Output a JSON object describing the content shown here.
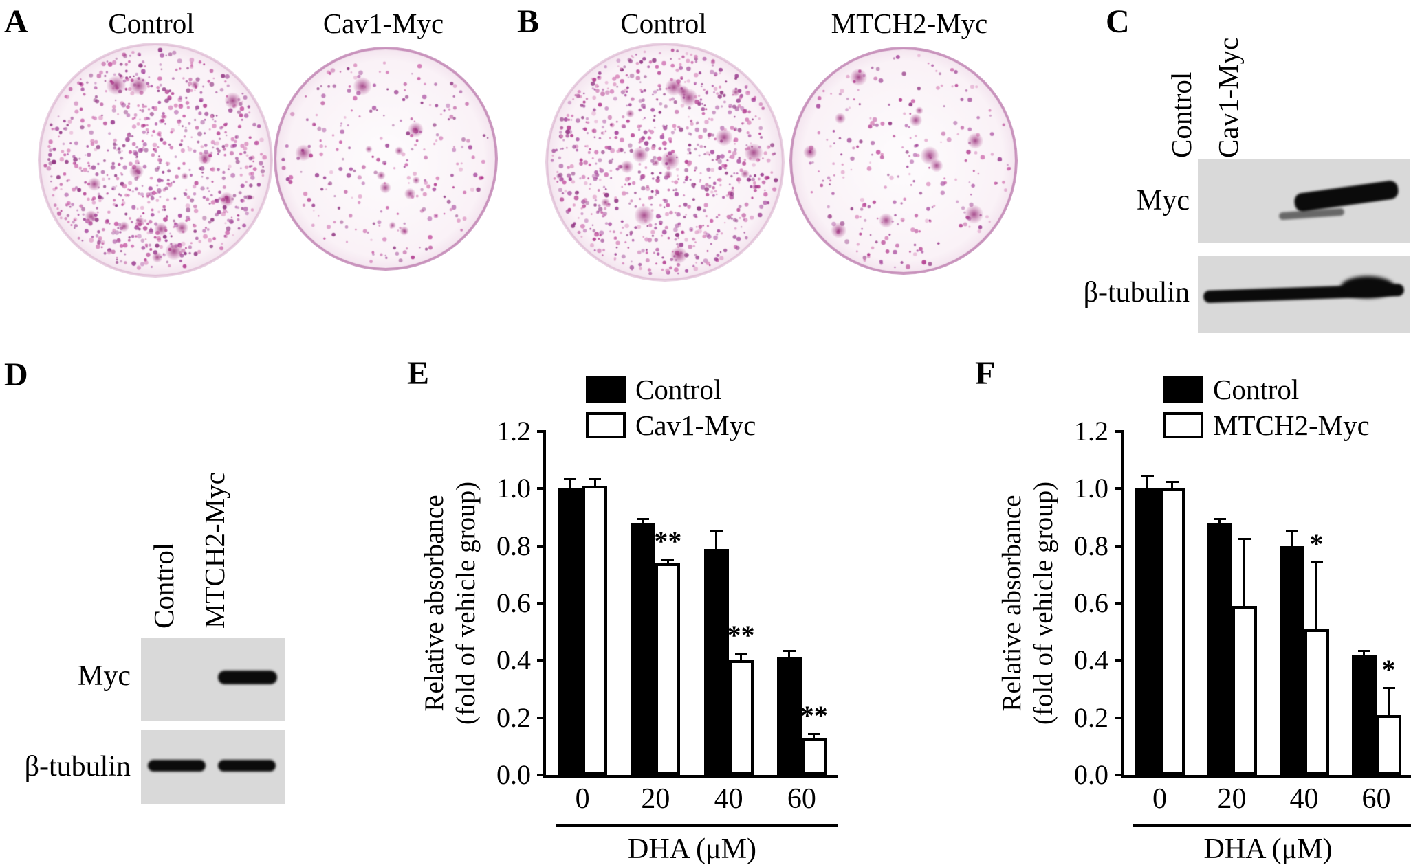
{
  "figure": {
    "panels": {
      "A": {
        "label": "A",
        "columns": [
          {
            "title": "Control",
            "density": "dense"
          },
          {
            "title": "Cav1-Myc",
            "density": "sparse"
          }
        ]
      },
      "B": {
        "label": "B",
        "columns": [
          {
            "title": "Control",
            "density": "dense"
          },
          {
            "title": "MTCH2-Myc",
            "density": "sparse"
          }
        ]
      },
      "C": {
        "label": "C",
        "lane_labels": [
          "Control",
          "Cav1-Myc"
        ],
        "row_labels": [
          "Myc",
          "β-tubulin"
        ]
      },
      "D": {
        "label": "D",
        "lane_labels": [
          "Control",
          "MTCH2-Myc"
        ],
        "row_labels": [
          "Myc",
          "β-tubulin"
        ]
      },
      "E": {
        "label": "E"
      },
      "F": {
        "label": "F"
      }
    }
  },
  "chart_data": [
    {
      "id": "E",
      "type": "bar",
      "categories": [
        "0",
        "20",
        "40",
        "60"
      ],
      "series": [
        {
          "name": "Control",
          "fill": "black",
          "values": [
            1.0,
            0.88,
            0.79,
            0.41
          ],
          "errors": [
            0.03,
            0.01,
            0.06,
            0.02
          ],
          "annotations": [
            "",
            "",
            "",
            ""
          ]
        },
        {
          "name": "Cav1-Myc",
          "fill": "white",
          "values": [
            1.01,
            0.74,
            0.4,
            0.13
          ],
          "errors": [
            0.02,
            0.01,
            0.02,
            0.01
          ],
          "annotations": [
            "",
            "**",
            "**",
            "**"
          ]
        }
      ],
      "xlabel": "DHA (μM)",
      "ylabel_lines": [
        "Relative absorbance",
        "(fold of vehicle group)"
      ],
      "ylim": [
        0,
        1.2
      ],
      "yticks": [
        "0.0",
        "0.2",
        "0.4",
        "0.6",
        "0.8",
        "1.0",
        "1.2"
      ],
      "legend_position": "top",
      "grid": false
    },
    {
      "id": "F",
      "type": "bar",
      "categories": [
        "0",
        "20",
        "40",
        "60"
      ],
      "series": [
        {
          "name": "Control",
          "fill": "black",
          "values": [
            1.0,
            0.88,
            0.8,
            0.42
          ],
          "errors": [
            0.04,
            0.01,
            0.05,
            0.01
          ],
          "annotations": [
            "",
            "",
            "",
            ""
          ]
        },
        {
          "name": "MTCH2-Myc",
          "fill": "white",
          "values": [
            1.0,
            0.59,
            0.51,
            0.21
          ],
          "errors": [
            0.02,
            0.23,
            0.23,
            0.09
          ],
          "annotations": [
            "",
            "",
            "*",
            "*"
          ]
        }
      ],
      "xlabel": "DHA (μM)",
      "ylabel_lines": [
        "Relative absorbance",
        "(fold of vehicle group)"
      ],
      "ylim": [
        0,
        1.2
      ],
      "yticks": [
        "0.0",
        "0.2",
        "0.4",
        "0.6",
        "0.8",
        "1.0",
        "1.2"
      ],
      "legend_position": "top",
      "grid": false
    }
  ]
}
